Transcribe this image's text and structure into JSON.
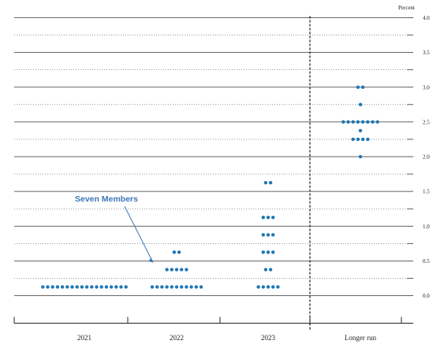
{
  "chart_data": {
    "type": "scatter",
    "title": "",
    "unit_label": "Percent",
    "categories": [
      "2021",
      "2022",
      "2023",
      "Longer run"
    ],
    "ylim": [
      -0.375,
      4.0
    ],
    "y_ticks": [
      {
        "value": 0.0,
        "label": "0.0"
      },
      {
        "value": 0.5,
        "label": "0.5"
      },
      {
        "value": 1.0,
        "label": "1.0"
      },
      {
        "value": 1.5,
        "label": "1.5"
      },
      {
        "value": 2.0,
        "label": "2.0"
      },
      {
        "value": 2.5,
        "label": "2.5"
      },
      {
        "value": 3.0,
        "label": "3.0"
      },
      {
        "value": 3.5,
        "label": "3.5"
      },
      {
        "value": 4.0,
        "label": "4.0"
      }
    ],
    "grid": "dotted at 0.25 intervals, solid at whole and half values",
    "dot_color": "#1f77b4",
    "series": [
      {
        "category": "2021",
        "points": [
          {
            "y": 0.125,
            "count": 18
          }
        ]
      },
      {
        "category": "2022",
        "points": [
          {
            "y": 0.125,
            "count": 11
          },
          {
            "y": 0.375,
            "count": 5
          },
          {
            "y": 0.625,
            "count": 2
          }
        ]
      },
      {
        "category": "2023",
        "points": [
          {
            "y": 0.125,
            "count": 5
          },
          {
            "y": 0.375,
            "count": 2
          },
          {
            "y": 0.625,
            "count": 3
          },
          {
            "y": 0.875,
            "count": 3
          },
          {
            "y": 1.125,
            "count": 3
          },
          {
            "y": 1.625,
            "count": 2
          }
        ]
      },
      {
        "category": "Longer run",
        "points": [
          {
            "y": 2.0,
            "count": 1
          },
          {
            "y": 2.25,
            "count": 4
          },
          {
            "y": 2.375,
            "count": 1
          },
          {
            "y": 2.5,
            "count": 8
          },
          {
            "y": 2.75,
            "count": 1
          },
          {
            "y": 3.0,
            "count": 2
          }
        ]
      }
    ],
    "annotations": [
      {
        "text": "Seven Members",
        "points_to": {
          "category": "2022",
          "y": 0.625
        }
      }
    ]
  }
}
